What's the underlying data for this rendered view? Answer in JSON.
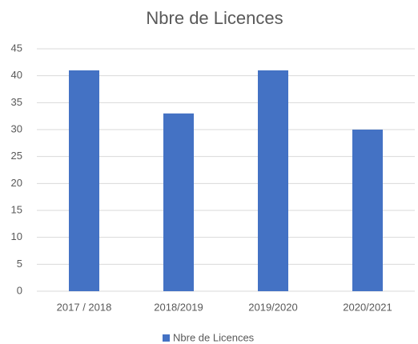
{
  "chart_data": {
    "type": "bar",
    "title": "Nbre de Licences",
    "categories": [
      "2017 / 2018",
      "2018/2019",
      "2019/2020",
      "2020/2021"
    ],
    "series": [
      {
        "name": "Nbre de Licences",
        "color": "#4472c4",
        "values": [
          41,
          33,
          41,
          30
        ]
      }
    ],
    "ylim": [
      0,
      45
    ],
    "yticks": [
      0,
      5,
      10,
      15,
      20,
      25,
      30,
      35,
      40,
      45
    ],
    "grid": true,
    "legend": "bottom"
  }
}
